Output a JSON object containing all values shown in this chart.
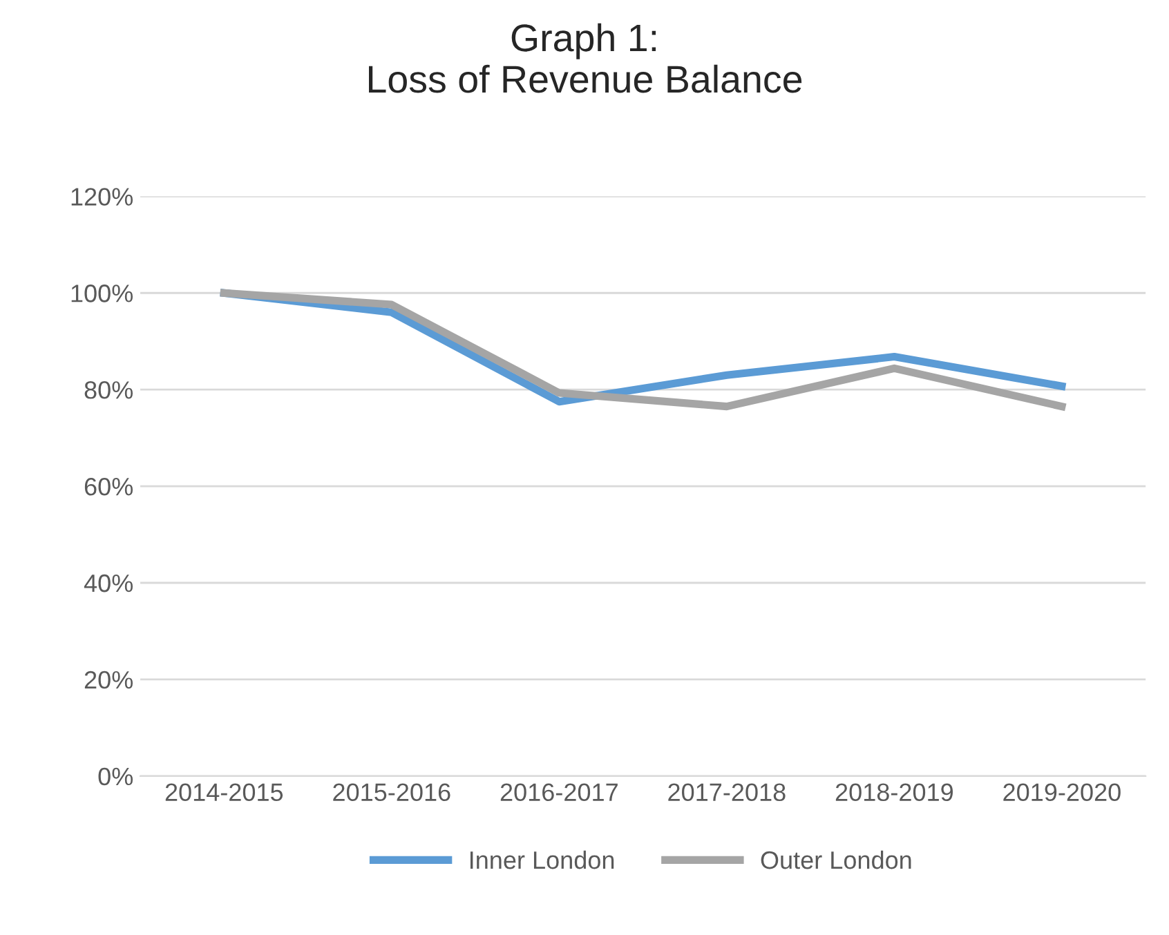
{
  "chart_data": {
    "type": "line",
    "title": "Graph 1:\nLoss of Revenue Balance",
    "categories": [
      "2014-2015",
      "2015-2016",
      "2016-2017",
      "2017-2018",
      "2018-2019",
      "2019-2020"
    ],
    "series": [
      {
        "name": "Inner London",
        "color": "#5b9bd5",
        "values": [
          100,
          96,
          77.5,
          83,
          86.8,
          80.7
        ]
      },
      {
        "name": "Outer London",
        "color": "#a5a5a5",
        "values": [
          100,
          97.6,
          79.3,
          76.5,
          84.4,
          76.5
        ]
      }
    ],
    "ylim": [
      0,
      120
    ],
    "yticks": [
      {
        "value": 0,
        "label": "0%"
      },
      {
        "value": 20,
        "label": "20%"
      },
      {
        "value": 40,
        "label": "40%"
      },
      {
        "value": 60,
        "label": "60%"
      },
      {
        "value": 80,
        "label": "80%"
      },
      {
        "value": 100,
        "label": "100%"
      },
      {
        "value": 120,
        "label": "120%"
      }
    ],
    "grid": "y",
    "legend": "bottom",
    "marker": "none",
    "line_style": "solid"
  }
}
